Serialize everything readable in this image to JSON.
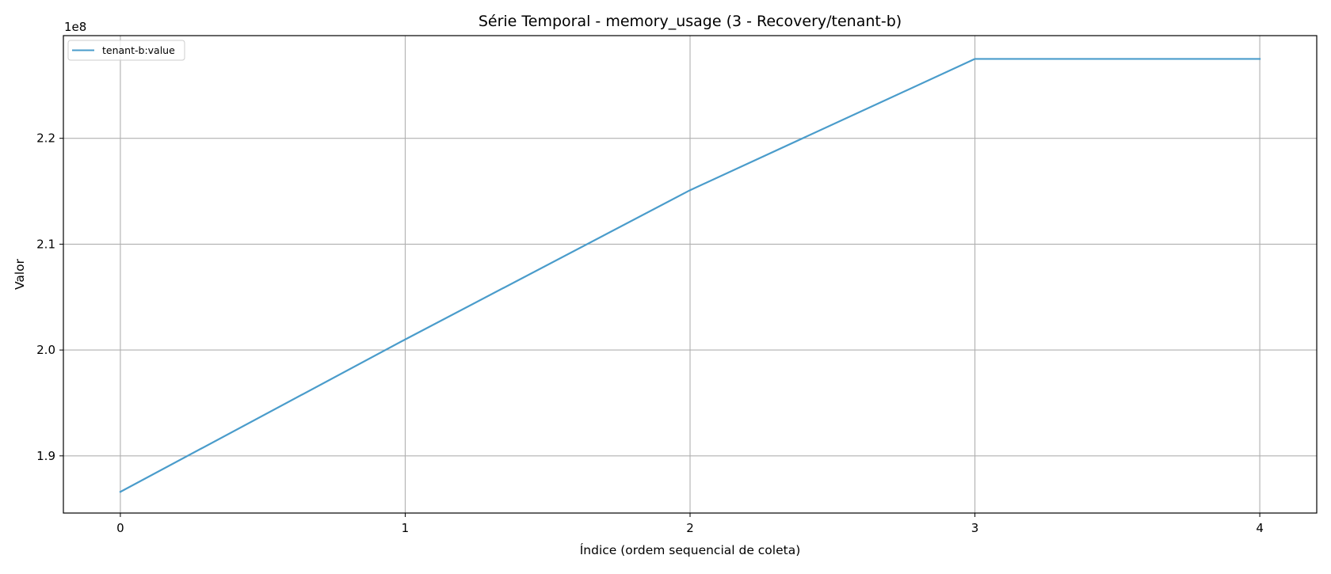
{
  "chart_data": {
    "type": "line",
    "title": "Série Temporal - memory_usage (3 - Recovery/tenant-b)",
    "xlabel": "Índice (ordem sequencial de coleta)",
    "ylabel": "Valor",
    "y_offset_label": "1e8",
    "x": [
      0,
      1,
      2,
      3,
      4
    ],
    "series": [
      {
        "name": "tenant-b:value",
        "color": "#4a9ccb",
        "values": [
          186600000,
          201000000,
          215100000,
          227500000,
          227500000
        ]
      }
    ],
    "x_ticks": [
      0,
      1,
      2,
      3,
      4
    ],
    "x_tick_labels": [
      "0",
      "1",
      "2",
      "3",
      "4"
    ],
    "y_ticks": [
      190000000,
      200000000,
      210000000,
      220000000
    ],
    "y_tick_labels": [
      "1.9",
      "2.0",
      "2.1",
      "2.2"
    ],
    "xlim": [
      -0.2,
      4.2
    ],
    "ylim": [
      184600000,
      229700000
    ],
    "grid": true,
    "legend_position": "upper-left"
  }
}
